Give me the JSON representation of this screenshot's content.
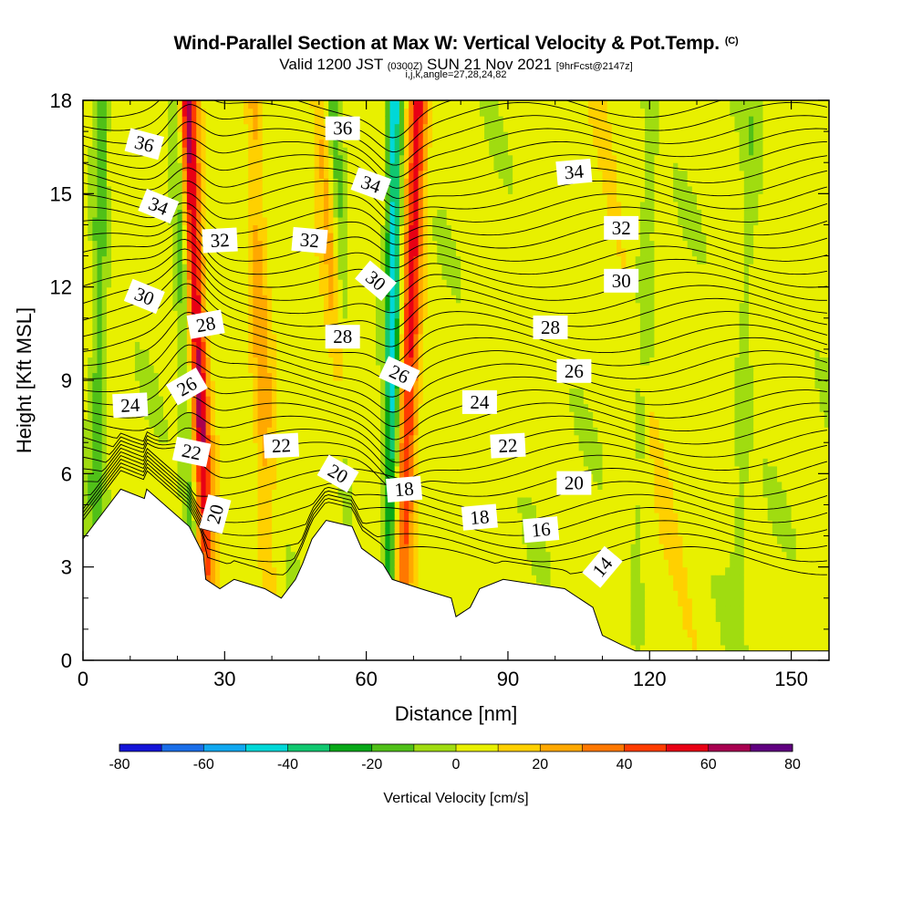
{
  "title": {
    "main": "Wind-Parallel Section at Max W: Vertical Velocity & Pot.Temp.",
    "copyright": "(C)",
    "valid_prefix": "Valid 1200 JST",
    "valid_utc": "(0300Z)",
    "valid_date": "SUN 21 Nov 2021",
    "forecast": "[9hrFcst@2147z]",
    "indices": "i,j,k,angle=27,28,24,82"
  },
  "chart_data": {
    "type": "heatmap",
    "xlabel": "Distance [nm]",
    "ylabel": "Height [Kft MSL]",
    "xlim": [
      0,
      158
    ],
    "ylim": [
      0,
      18
    ],
    "x_ticks": [
      "0",
      "30",
      "60",
      "90",
      "120",
      "150"
    ],
    "y_ticks": [
      "0",
      "3",
      "6",
      "9",
      "12",
      "15",
      "18"
    ],
    "colorbar": {
      "label": "Vertical Velocity [cm/s]",
      "range": [
        -80,
        80
      ],
      "tick_labels": [
        "-80",
        "-60",
        "-40",
        "-20",
        "0",
        "20",
        "40",
        "60",
        "80"
      ],
      "colors": [
        "#1414d8",
        "#1a6ee8",
        "#10a8f0",
        "#00d8d8",
        "#10c870",
        "#08a818",
        "#50c018",
        "#a0dc10",
        "#e8f000",
        "#ffd000",
        "#ffa800",
        "#ff7800",
        "#ff3c00",
        "#e80014",
        "#a80050",
        "#600080"
      ]
    },
    "updrafts": [
      {
        "x_bottom": 27,
        "x_top": 22,
        "strength": 60
      },
      {
        "x_bottom": 40,
        "x_top": 36,
        "strength": 20
      },
      {
        "x_bottom": 67,
        "x_top": 71,
        "strength": 50
      },
      {
        "x_bottom": 60,
        "x_top": 50,
        "strength": 20
      },
      {
        "x_bottom": 130,
        "x_top": 108,
        "strength": 10
      }
    ],
    "downdrafts": [
      {
        "x_bottom": 24,
        "x_top": 20,
        "strength": -25
      },
      {
        "x_bottom": 58,
        "x_top": 53,
        "strength": -20
      },
      {
        "x_bottom": 65,
        "x_top": 66,
        "strength": -50
      },
      {
        "x_bottom": 2,
        "x_top": 4,
        "strength": -20
      },
      {
        "x_bottom": 117,
        "x_top": 120,
        "strength": -10
      },
      {
        "x_bottom": 138,
        "x_top": 142,
        "strength": -10
      }
    ],
    "terrain": [
      {
        "x": 0,
        "h": 3.9
      },
      {
        "x": 3,
        "h": 4.5
      },
      {
        "x": 6,
        "h": 5.1
      },
      {
        "x": 8,
        "h": 5.5
      },
      {
        "x": 13,
        "h": 5.2
      },
      {
        "x": 13.5,
        "h": 5.5
      },
      {
        "x": 22.5,
        "h": 4.3
      },
      {
        "x": 25.5,
        "h": 3.4
      },
      {
        "x": 26,
        "h": 2.6
      },
      {
        "x": 29,
        "h": 2.3
      },
      {
        "x": 32,
        "h": 2.6
      },
      {
        "x": 38.5,
        "h": 2.3
      },
      {
        "x": 42,
        "h": 2.0
      },
      {
        "x": 45,
        "h": 2.6
      },
      {
        "x": 46.5,
        "h": 3.1
      },
      {
        "x": 48.5,
        "h": 3.9
      },
      {
        "x": 51.5,
        "h": 4.5
      },
      {
        "x": 57,
        "h": 4.3
      },
      {
        "x": 59,
        "h": 3.6
      },
      {
        "x": 63.5,
        "h": 3.1
      },
      {
        "x": 65.5,
        "h": 2.6
      },
      {
        "x": 71.5,
        "h": 2.3
      },
      {
        "x": 78,
        "h": 2.0
      },
      {
        "x": 79,
        "h": 1.4
      },
      {
        "x": 82,
        "h": 1.7
      },
      {
        "x": 84,
        "h": 2.3
      },
      {
        "x": 89,
        "h": 2.6
      },
      {
        "x": 102,
        "h": 2.3
      },
      {
        "x": 108,
        "h": 1.7
      },
      {
        "x": 110,
        "h": 0.8
      },
      {
        "x": 114,
        "h": 0.5
      },
      {
        "x": 117,
        "h": 0.3
      },
      {
        "x": 158,
        "h": 0.3
      }
    ],
    "isentropes": [
      "14",
      "16",
      "18",
      "20",
      "22",
      "24",
      "26",
      "28",
      "30",
      "32",
      "34",
      "36"
    ],
    "isentrope_labels": [
      {
        "text": "36",
        "x": 13,
        "y": 16.6,
        "angle": 15
      },
      {
        "text": "36",
        "x": 55,
        "y": 17.1,
        "angle": 0
      },
      {
        "text": "34",
        "x": 16,
        "y": 14.6,
        "angle": 22
      },
      {
        "text": "34",
        "x": 61,
        "y": 15.3,
        "angle": 20
      },
      {
        "text": "34",
        "x": 104,
        "y": 15.7,
        "angle": -5
      },
      {
        "text": "32",
        "x": 29,
        "y": 13.5,
        "angle": -3
      },
      {
        "text": "32",
        "x": 48,
        "y": 13.5,
        "angle": 5
      },
      {
        "text": "32",
        "x": 114,
        "y": 13.9,
        "angle": 0
      },
      {
        "text": "30",
        "x": 13,
        "y": 11.7,
        "angle": 22
      },
      {
        "text": "30",
        "x": 62,
        "y": 12.2,
        "angle": 40
      },
      {
        "text": "30",
        "x": 114,
        "y": 12.2,
        "angle": 0
      },
      {
        "text": "28",
        "x": 26,
        "y": 10.8,
        "angle": -10
      },
      {
        "text": "28",
        "x": 55,
        "y": 10.4,
        "angle": 0
      },
      {
        "text": "28",
        "x": 99,
        "y": 10.7,
        "angle": 0
      },
      {
        "text": "26",
        "x": 22,
        "y": 8.8,
        "angle": -30
      },
      {
        "text": "26",
        "x": 67,
        "y": 9.2,
        "angle": 25
      },
      {
        "text": "26",
        "x": 104,
        "y": 9.3,
        "angle": 0
      },
      {
        "text": "24",
        "x": 10,
        "y": 8.2,
        "angle": -3
      },
      {
        "text": "24",
        "x": 84,
        "y": 8.3,
        "angle": 0
      },
      {
        "text": "22",
        "x": 23,
        "y": 6.7,
        "angle": 12
      },
      {
        "text": "22",
        "x": 42,
        "y": 6.9,
        "angle": -3
      },
      {
        "text": "22",
        "x": 90,
        "y": 6.9,
        "angle": -3
      },
      {
        "text": "20",
        "x": 28,
        "y": 4.7,
        "angle": -75
      },
      {
        "text": "20",
        "x": 54,
        "y": 6.0,
        "angle": 30
      },
      {
        "text": "20",
        "x": 104,
        "y": 5.7,
        "angle": 0
      },
      {
        "text": "18",
        "x": 68,
        "y": 5.5,
        "angle": -5
      },
      {
        "text": "18",
        "x": 84,
        "y": 4.6,
        "angle": -5
      },
      {
        "text": "16",
        "x": 97,
        "y": 4.2,
        "angle": -5
      },
      {
        "text": "14",
        "x": 110,
        "y": 3.0,
        "angle": -50
      }
    ]
  }
}
